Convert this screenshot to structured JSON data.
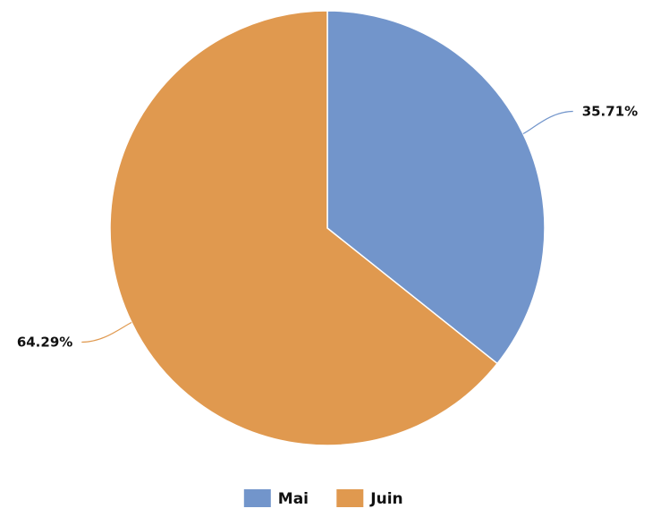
{
  "chart_data": {
    "type": "pie",
    "categories": [
      "Mai",
      "Juin"
    ],
    "values": [
      35.71,
      64.29
    ],
    "value_labels": [
      "35.71%",
      "64.29%"
    ],
    "colors": [
      "#7295cb",
      "#e0994f"
    ],
    "start_angle_deg": 0,
    "direction": "clockwise",
    "legend": {
      "position": "bottom",
      "entries": [
        "Mai",
        "Juin"
      ]
    }
  }
}
